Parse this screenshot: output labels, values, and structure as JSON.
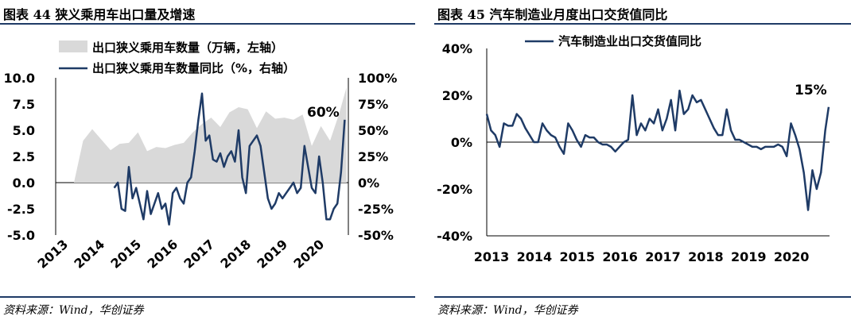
{
  "left": {
    "title": "图表 44    狭义乘用车出口量及增速",
    "source": "资料来源：Wind，华创证券",
    "annotation": "60%",
    "legend_area": "出口狭义乘用车数量（万辆，左轴）",
    "legend_line": "出口狭义乘用车数量同比（%，右轴）",
    "left_ticks": [
      "10.0",
      "7.5",
      "5.0",
      "2.5",
      "0.0",
      "-2.5",
      "-5.0"
    ],
    "right_ticks": [
      "100%",
      "75%",
      "50%",
      "25%",
      "0%",
      "-25%",
      "-50%"
    ],
    "x_ticks": [
      "2013",
      "2014",
      "2015",
      "2016",
      "2017",
      "2018",
      "2019",
      "2020"
    ]
  },
  "right": {
    "title": "图表 45    汽车制造业月度出口交货值同比",
    "source": "资料来源：Wind，华创证券",
    "annotation": "15%",
    "legend_line": "汽车制造业出口交货值同比",
    "y_ticks": [
      "40%",
      "20%",
      "0%",
      "-20%",
      "-40%"
    ],
    "x_ticks": [
      "2013",
      "2014",
      "2015",
      "2016",
      "2017",
      "2018",
      "2019",
      "2020"
    ]
  },
  "chart_data": [
    {
      "type": "area",
      "title": "狭义乘用车出口量及增速",
      "x": [
        2013.5,
        2013.75,
        2014.0,
        2014.25,
        2014.5,
        2014.75,
        2015.0,
        2015.25,
        2015.5,
        2015.75,
        2016.0,
        2016.25,
        2016.5,
        2016.75,
        2017.0,
        2017.25,
        2017.5,
        2017.75,
        2018.0,
        2018.25,
        2018.5,
        2018.75,
        2019.0,
        2019.25,
        2019.5,
        2019.75,
        2020.0,
        2020.25,
        2020.5,
        2020.75,
        2020.95
      ],
      "series": [
        {
          "name": "出口狭义乘用车数量（万辆，左轴）",
          "axis": "left",
          "values": [
            0,
            4.0,
            5.1,
            4.1,
            3.1,
            3.7,
            3.8,
            4.8,
            3.0,
            3.4,
            3.3,
            3.6,
            3.8,
            4.8,
            5.6,
            6.2,
            5.3,
            6.7,
            7.2,
            7.0,
            5.2,
            6.8,
            6.1,
            6.2,
            6.0,
            6.5,
            3.5,
            5.4,
            4.0,
            6.6,
            9.1
          ]
        },
        {
          "name": "出口狭义乘用车数量同比（%，右轴）",
          "axis": "right",
          "x": [
            2014.6,
            2014.7,
            2014.8,
            2014.9,
            2015.0,
            2015.1,
            2015.2,
            2015.3,
            2015.4,
            2015.5,
            2015.6,
            2015.7,
            2015.8,
            2015.9,
            2016.0,
            2016.1,
            2016.2,
            2016.3,
            2016.4,
            2016.5,
            2016.6,
            2016.7,
            2016.8,
            2016.9,
            2017.0,
            2017.1,
            2017.2,
            2017.3,
            2017.4,
            2017.5,
            2017.6,
            2017.7,
            2017.8,
            2017.9,
            2018.0,
            2018.1,
            2018.2,
            2018.3,
            2018.4,
            2018.5,
            2018.6,
            2018.7,
            2018.8,
            2018.9,
            2019.0,
            2019.1,
            2019.2,
            2019.3,
            2019.4,
            2019.5,
            2019.6,
            2019.7,
            2019.8,
            2019.9,
            2020.0,
            2020.1,
            2020.2,
            2020.3,
            2020.4,
            2020.5,
            2020.6,
            2020.7,
            2020.8,
            2020.9
          ],
          "values": [
            -5,
            0,
            -25,
            -27,
            15,
            -15,
            -5,
            -20,
            -35,
            -8,
            -30,
            -20,
            -10,
            -25,
            -20,
            -40,
            -10,
            -5,
            -15,
            -20,
            0,
            5,
            30,
            60,
            85,
            40,
            45,
            22,
            20,
            28,
            15,
            25,
            30,
            20,
            50,
            5,
            -10,
            35,
            40,
            45,
            35,
            10,
            -15,
            -25,
            -20,
            -10,
            -15,
            -10,
            -5,
            0,
            -10,
            -5,
            35,
            15,
            -5,
            -10,
            25,
            0,
            -35,
            -35,
            -25,
            -20,
            10,
            60
          ]
        }
      ],
      "ylim_left": [
        -5.0,
        10.0
      ],
      "ylim_right": [
        -50,
        100
      ],
      "annotations": [
        "60%"
      ],
      "legend": "top-left",
      "grid": false
    },
    {
      "type": "line",
      "title": "汽车制造业月度出口交货值同比",
      "x": [
        2013.0,
        2013.1,
        2013.2,
        2013.3,
        2013.4,
        2013.5,
        2013.6,
        2013.7,
        2013.8,
        2013.9,
        2014.0,
        2014.1,
        2014.2,
        2014.3,
        2014.4,
        2014.5,
        2014.6,
        2014.7,
        2014.8,
        2014.9,
        2015.0,
        2015.1,
        2015.2,
        2015.3,
        2015.4,
        2015.5,
        2015.6,
        2015.7,
        2015.8,
        2015.9,
        2016.0,
        2016.1,
        2016.2,
        2016.3,
        2016.4,
        2016.5,
        2016.6,
        2016.7,
        2016.8,
        2016.9,
        2017.0,
        2017.1,
        2017.2,
        2017.3,
        2017.4,
        2017.5,
        2017.6,
        2017.7,
        2017.8,
        2017.9,
        2018.0,
        2018.1,
        2018.2,
        2018.3,
        2018.4,
        2018.5,
        2018.6,
        2018.7,
        2018.8,
        2018.9,
        2019.0,
        2019.1,
        2019.2,
        2019.3,
        2019.4,
        2019.5,
        2019.6,
        2019.7,
        2019.8,
        2019.9,
        2020.0,
        2020.1,
        2020.2,
        2020.3,
        2020.4,
        2020.5,
        2020.6,
        2020.7,
        2020.8,
        2020.9,
        2020.98
      ],
      "series": [
        {
          "name": "汽车制造业出口交货值同比",
          "values": [
            12,
            5,
            3,
            -2,
            8,
            7,
            7,
            12,
            10,
            6,
            3,
            0,
            0,
            8,
            5,
            3,
            2,
            -2,
            -5,
            8,
            5,
            1,
            -2,
            3,
            2,
            2,
            0,
            -1,
            -1,
            -2,
            -4,
            -2,
            0,
            1,
            20,
            3,
            8,
            5,
            10,
            8,
            14,
            5,
            10,
            18,
            5,
            22,
            12,
            14,
            20,
            17,
            18,
            14,
            10,
            6,
            3,
            3,
            14,
            5,
            1,
            1,
            0,
            -1,
            -2,
            -2,
            -3,
            -2,
            -2,
            -2,
            -1,
            -2,
            -6,
            8,
            3,
            -3,
            -13,
            -29,
            -12,
            -20,
            -13,
            5,
            15
          ]
        }
      ],
      "ylim": [
        -40,
        40
      ],
      "annotations": [
        "15%"
      ],
      "legend": "top",
      "grid": false,
      "zero_line": true
    }
  ]
}
